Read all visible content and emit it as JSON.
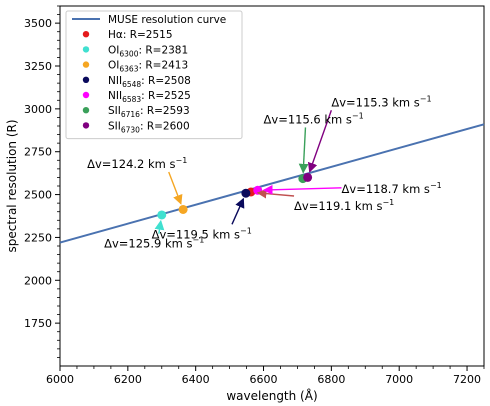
{
  "chart_data": {
    "type": "line",
    "xlabel": "wavelength (Å)",
    "ylabel": "spectral resolution (R)",
    "xlim": [
      6000,
      7250
    ],
    "ylim": [
      1500,
      3600
    ],
    "x_ticks": [
      6000,
      6200,
      6400,
      6600,
      6800,
      7000,
      7200
    ],
    "x_tick_labels": [
      "6000",
      "6200",
      "6400",
      "6600",
      "6800",
      "7000",
      "7200"
    ],
    "y_ticks": [
      1750,
      2000,
      2250,
      2500,
      2750,
      3000,
      3250,
      3500
    ],
    "y_tick_labels": [
      "1750",
      "2000",
      "2250",
      "2500",
      "2750",
      "3000",
      "3250",
      "3500"
    ],
    "grid": false,
    "legend_placement": "top-left",
    "curve": {
      "name": "MUSE resolution curve",
      "color": "#4a72b0",
      "x": [
        6000,
        7250
      ],
      "y": [
        2220,
        2910
      ]
    },
    "points": [
      {
        "name": "Hα",
        "legend_main": "Hα",
        "legend_sub": "",
        "legend_suffix": ": R=2515",
        "x": 6563,
        "y": 2515,
        "color": "#e41a1c"
      },
      {
        "name": "OI6300",
        "legend_main": "OI",
        "legend_sub": "6300",
        "legend_suffix": ": R=2381",
        "x": 6300,
        "y": 2381,
        "color": "#40e0d0"
      },
      {
        "name": "OI6363",
        "legend_main": "OI",
        "legend_sub": "6363",
        "legend_suffix": ": R=2413",
        "x": 6363,
        "y": 2413,
        "color": "#f5a623"
      },
      {
        "name": "NII6548",
        "legend_main": "NII",
        "legend_sub": "6548",
        "legend_suffix": ": R=2508",
        "x": 6548,
        "y": 2508,
        "color": "#0a0a5c"
      },
      {
        "name": "NII6583",
        "legend_main": "NII",
        "legend_sub": "6583",
        "legend_suffix": ": R=2525",
        "x": 6583,
        "y": 2525,
        "color": "#ff00ff"
      },
      {
        "name": "SII6716",
        "legend_main": "SII",
        "legend_sub": "6716",
        "legend_suffix": ": R=2593",
        "x": 6716,
        "y": 2593,
        "color": "#3aa05a"
      },
      {
        "name": "SII6730",
        "legend_main": "SII",
        "legend_sub": "6730",
        "legend_suffix": ": R=2600",
        "x": 6730,
        "y": 2600,
        "color": "#800080"
      }
    ],
    "annotations": [
      {
        "text": "Δv=125.9 km s",
        "sup": "−1",
        "color": "#40e0d0",
        "text_x": 6130,
        "text_y": 2190,
        "target_x": 6300,
        "target_y": 2381
      },
      {
        "text": "Δv=124.2 km s",
        "sup": "−1",
        "color": "#f5a623",
        "text_x": 6080,
        "text_y": 2655,
        "target_x": 6363,
        "target_y": 2413
      },
      {
        "text": "Δv=119.5 km s",
        "sup": "−1",
        "color": "#0a0a5c",
        "text_x": 6270,
        "text_y": 2245,
        "target_x": 6548,
        "target_y": 2508
      },
      {
        "text": "Δv=119.1 km s",
        "sup": "−1",
        "color": "#c05050",
        "text_x": 6690,
        "text_y": 2410,
        "target_x": 6565,
        "target_y": 2513
      },
      {
        "text": "Δv=118.7 km s",
        "sup": "−1",
        "color": "#ff00ff",
        "text_x": 6830,
        "text_y": 2510,
        "target_x": 6583,
        "target_y": 2525
      },
      {
        "text": "Δv=115.6 km s",
        "sup": "−1",
        "color": "#3aa05a",
        "text_x": 6600,
        "text_y": 2915,
        "target_x": 6716,
        "target_y": 2593
      },
      {
        "text": "Δv=115.3 km s",
        "sup": "−1",
        "color": "#800080",
        "text_x": 6800,
        "text_y": 3015,
        "target_x": 6730,
        "target_y": 2600
      }
    ]
  }
}
